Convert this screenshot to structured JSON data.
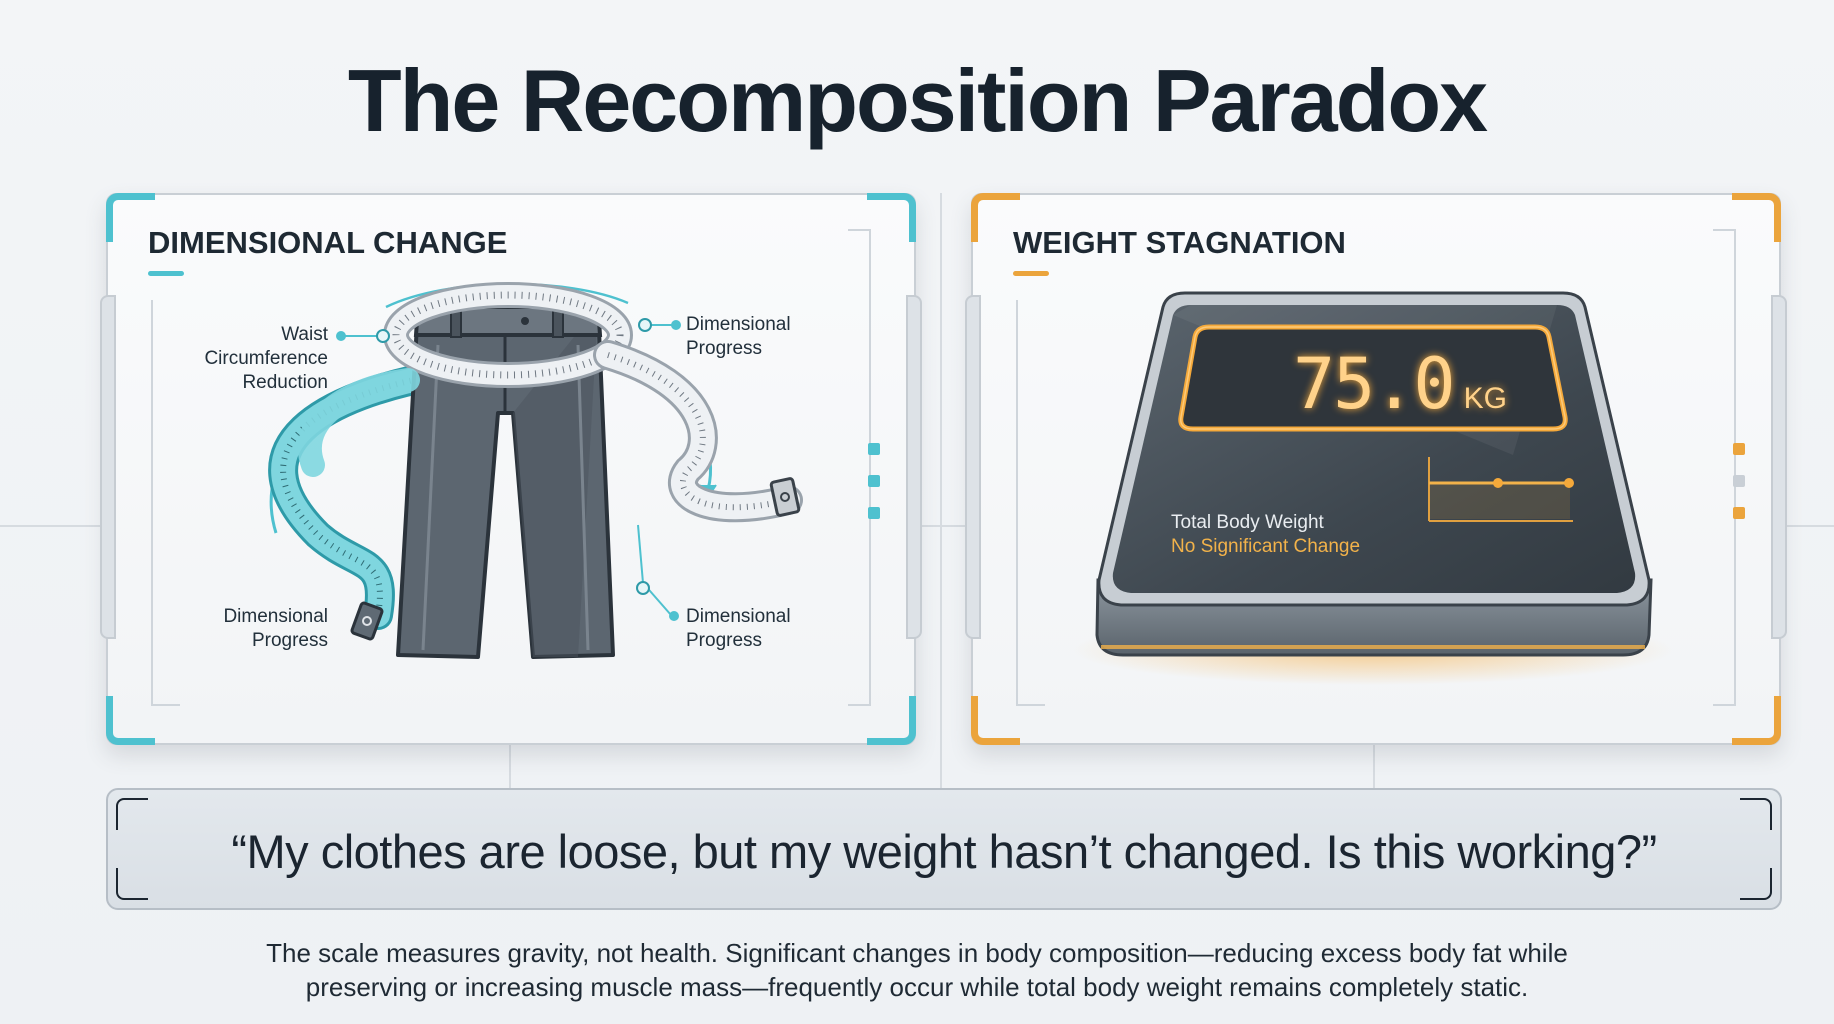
{
  "title": "The Recomposition Paradox",
  "left_panel": {
    "heading": "DIMENSIONAL CHANGE",
    "accent_color": "#4ec1cf",
    "labels": {
      "waist": [
        "Waist",
        "Circumference",
        "Reduction"
      ],
      "top_right": [
        "Dimensional",
        "Progress"
      ],
      "bottom_left": [
        "Dimensional",
        "Progress"
      ],
      "bottom_right": [
        "Dimensional",
        "Progress"
      ]
    }
  },
  "right_panel": {
    "heading": "WEIGHT STAGNATION",
    "accent_color": "#eba43c",
    "scale": {
      "reading": "75.0",
      "unit": "KG",
      "label": "Total Body Weight",
      "status": "No Significant Change"
    }
  },
  "quote": "“My clothes are loose, but my weight hasn’t changed. Is this working?”",
  "footer": {
    "line1": "The scale measures gravity, not health. Significant changes in body composition—reducing excess body fat while",
    "line2": "preserving or increasing muscle mass—frequently occur while total body weight remains completely static."
  }
}
